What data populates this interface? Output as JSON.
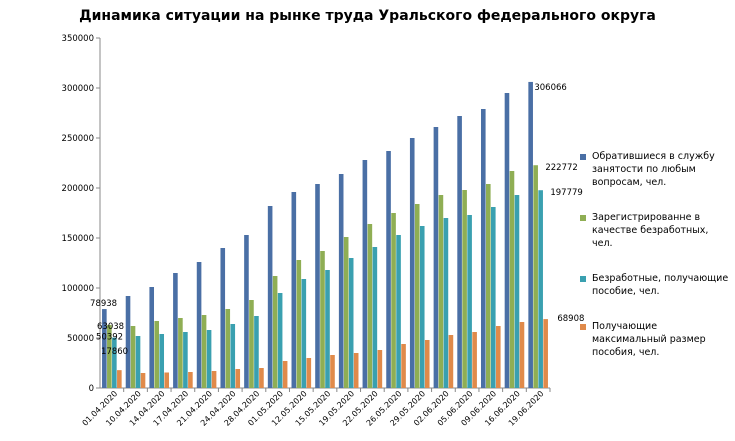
{
  "chart_data": {
    "type": "bar",
    "title": "Динамика ситуации  на рынке труда Уральского федерального округа",
    "xlabel": "",
    "ylabel": "",
    "ylim": [
      0,
      350000
    ],
    "yticks": [
      0,
      50000,
      100000,
      150000,
      200000,
      250000,
      300000,
      350000
    ],
    "grid": false,
    "legend_position": "right",
    "categories": [
      "01.04.2020",
      "10.04.2020",
      "14.04.2020",
      "17.04.2020",
      "21.04.2020",
      "24.04.2020",
      "28.04.2020",
      "01.05.2020",
      "12.05.2020",
      "15.05.2020",
      "19.05.2020",
      "22.05.2020",
      "26.05.2020",
      "29.05.2020",
      "02.06.2020",
      "05.06.2020",
      "09.06.2020",
      "16.06.2020",
      "19.06.2020"
    ],
    "series": [
      {
        "name": "Обратившиеся в службу занятости по любым вопросам, чел.",
        "color": "#4a6fa5",
        "values": [
          78938,
          92000,
          101000,
          115000,
          126000,
          140000,
          153000,
          182000,
          196000,
          204000,
          214000,
          228000,
          237000,
          250000,
          261000,
          272000,
          279000,
          295000,
          306066
        ]
      },
      {
        "name": "Зарегистрированне в качестве безработных, чел.",
        "color": "#8fae54",
        "values": [
          63038,
          62000,
          67000,
          70000,
          73000,
          79000,
          88000,
          112000,
          128000,
          137000,
          151000,
          164000,
          175000,
          184000,
          193000,
          198000,
          204000,
          217000,
          222772
        ]
      },
      {
        "name": "Безработные, получающие пособие, чел.",
        "color": "#3aa0b0",
        "values": [
          50392,
          52000,
          54000,
          56000,
          58000,
          64000,
          72000,
          95000,
          109000,
          118000,
          130000,
          141000,
          153000,
          162000,
          170000,
          173000,
          181000,
          193000,
          197779
        ]
      },
      {
        "name": "Получающие максимальный размер пособия, чел.",
        "color": "#e08a4a",
        "values": [
          17860,
          15000,
          15500,
          16000,
          17000,
          19000,
          20000,
          27000,
          30000,
          33000,
          35000,
          38000,
          44000,
          48000,
          53000,
          56000,
          62000,
          66000,
          68908
        ]
      }
    ],
    "data_labels": [
      {
        "series": 0,
        "index": 0,
        "text": "78938"
      },
      {
        "series": 1,
        "index": 0,
        "text": "63038"
      },
      {
        "series": 2,
        "index": 0,
        "text": "50392"
      },
      {
        "series": 3,
        "index": 0,
        "text": "17860"
      },
      {
        "series": 0,
        "index": 18,
        "text": "306066"
      },
      {
        "series": 1,
        "index": 18,
        "text": "222772"
      },
      {
        "series": 2,
        "index": 18,
        "text": "197779"
      },
      {
        "series": 3,
        "index": 18,
        "text": "68908"
      }
    ]
  }
}
